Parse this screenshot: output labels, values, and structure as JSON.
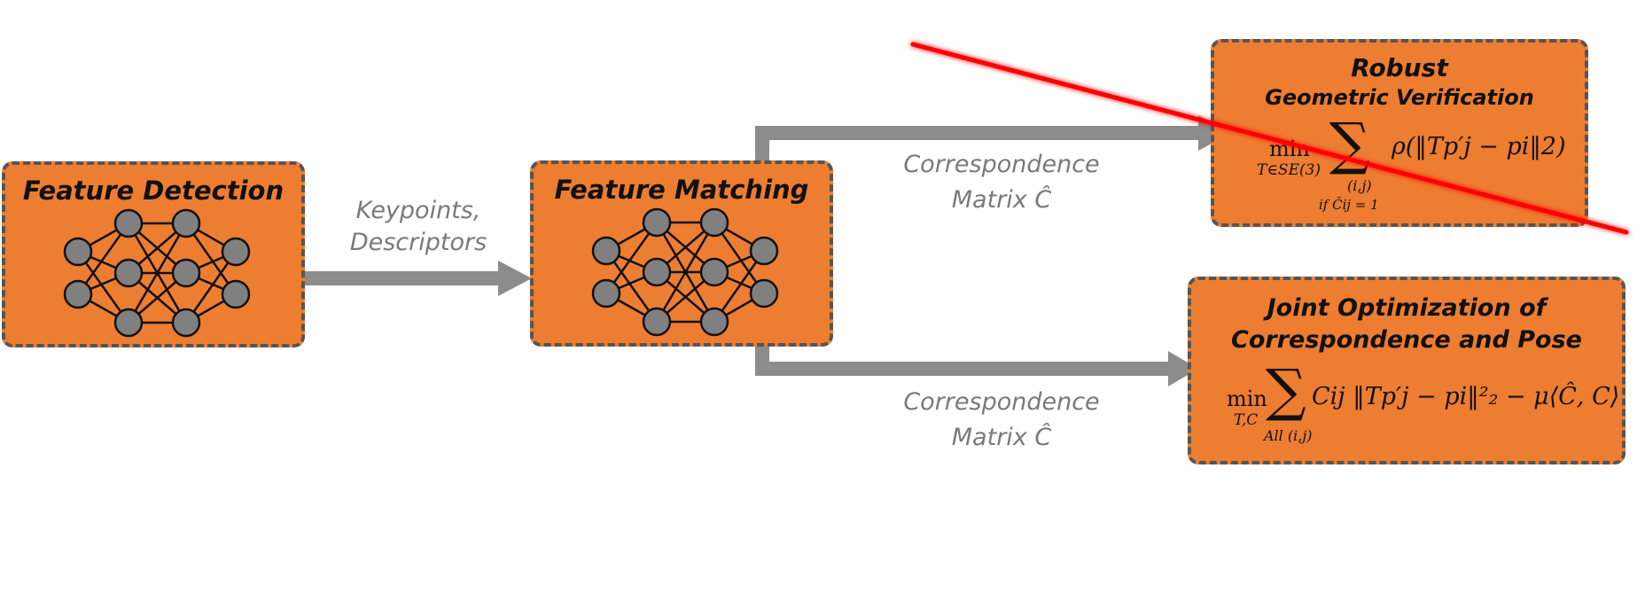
{
  "nodes": {
    "feature_detection": {
      "title": "Feature Detection"
    },
    "feature_matching": {
      "title": "Feature Matching"
    },
    "robust": {
      "title_line1": "Robust",
      "title_line2": "Geometric Verification",
      "formula": {
        "op": "min",
        "op_sub": "T∈SE(3)",
        "sum_sub1": "(i,j)",
        "sum_sub2": "if Ĉij = 1",
        "body": "ρ(‖Tp′j − pi‖2)"
      }
    },
    "joint": {
      "title_line1": "Joint Optimization of",
      "title_line2": "Correspondence and Pose",
      "formula": {
        "op": "min",
        "op_sub": "T,C",
        "sum_sub": "All (i,j)",
        "body": "Cij ‖Tp′j − pi‖²₂ − μ⟨Ĉ, C⟩"
      }
    }
  },
  "edges": {
    "detect_to_match": {
      "label_line1": "Keypoints,",
      "label_line2": "Descriptors"
    },
    "match_to_robust": {
      "label_line1": "Correspondence",
      "label_line2": "Matrix  Ĉ"
    },
    "match_to_joint": {
      "label_line1": "Correspondence",
      "label_line2": "Matrix  Ĉ"
    }
  },
  "colors": {
    "box_fill": "#ED7D31",
    "box_border": "#555555",
    "arrow": "#8c8c8c",
    "neuron": "#808080",
    "strike_line": "#ff0000"
  }
}
